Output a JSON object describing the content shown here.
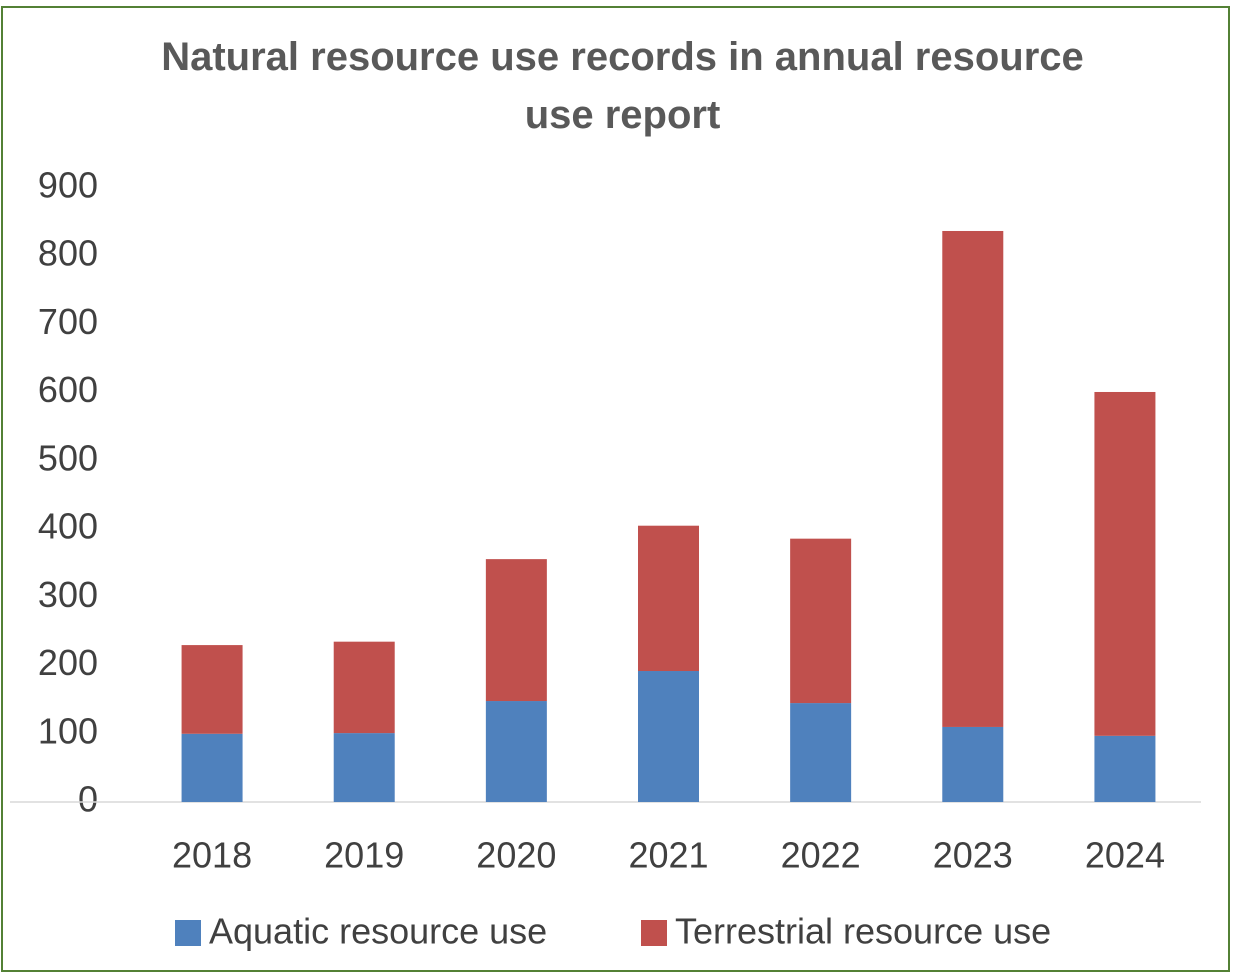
{
  "chart_data": {
    "type": "stacked_bar",
    "title": "Natural resource use records in annual resource use report",
    "categories": [
      "2018",
      "2019",
      "2020",
      "2021",
      "2022",
      "2023",
      "2024"
    ],
    "series": [
      {
        "name": "Aquatic resource use",
        "color": "#4f81bd",
        "values": [
          100,
          101,
          148,
          192,
          145,
          110,
          97
        ]
      },
      {
        "name": "Terrestrial resource use",
        "color": "#c0504d",
        "values": [
          130,
          134,
          208,
          213,
          241,
          727,
          504
        ]
      }
    ],
    "ylim": [
      0,
      900
    ],
    "yticks": [
      0,
      100,
      200,
      300,
      400,
      500,
      600,
      700,
      800,
      900
    ],
    "legend": "bottom"
  }
}
